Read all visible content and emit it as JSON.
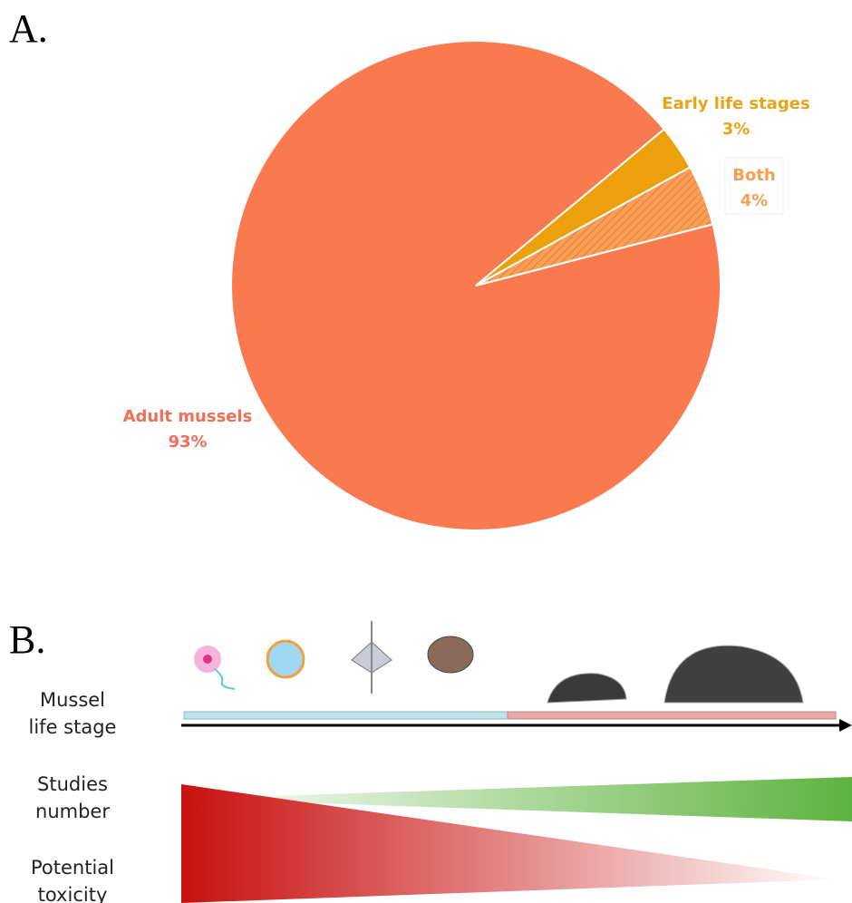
{
  "chart_data": {
    "type": "pie",
    "categories": [
      "Adult mussels",
      "Early life stages",
      "Both"
    ],
    "values": [
      93,
      3,
      4
    ],
    "value_labels": [
      "93%",
      "3%",
      "4%"
    ],
    "colors": [
      "#fa7a50",
      "#eba00c",
      "#f79646"
    ],
    "label_colors": [
      "#f06e5a",
      "#e8a317",
      "#f5a055"
    ]
  },
  "panel_labels": [
    "A.",
    "B."
  ],
  "diagram": {
    "row_labels": [
      [
        "Mussel",
        "life stage"
      ],
      [
        "Studies",
        "number"
      ],
      [
        "Potential",
        "toxicity"
      ]
    ]
  }
}
